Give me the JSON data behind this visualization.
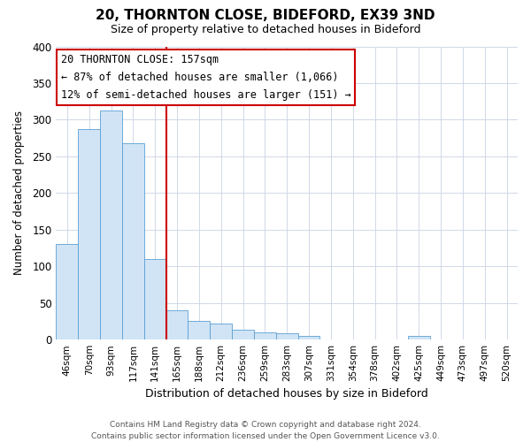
{
  "title": "20, THORNTON CLOSE, BIDEFORD, EX39 3ND",
  "subtitle": "Size of property relative to detached houses in Bideford",
  "xlabel": "Distribution of detached houses by size in Bideford",
  "ylabel": "Number of detached properties",
  "bar_labels": [
    "46sqm",
    "70sqm",
    "93sqm",
    "117sqm",
    "141sqm",
    "165sqm",
    "188sqm",
    "212sqm",
    "236sqm",
    "259sqm",
    "283sqm",
    "307sqm",
    "331sqm",
    "354sqm",
    "378sqm",
    "402sqm",
    "425sqm",
    "449sqm",
    "473sqm",
    "497sqm",
    "520sqm"
  ],
  "bar_values": [
    130,
    287,
    313,
    268,
    110,
    40,
    25,
    22,
    13,
    10,
    9,
    5,
    0,
    0,
    0,
    0,
    5,
    0,
    0,
    0,
    0
  ],
  "bar_color": "#d0e4f5",
  "bar_edge_color": "#5a9fd4",
  "vline_color": "#cc0000",
  "vline_index": 5,
  "ylim": [
    0,
    400
  ],
  "yticks": [
    0,
    50,
    100,
    150,
    200,
    250,
    300,
    350,
    400
  ],
  "annotation_title": "20 THORNTON CLOSE: 157sqm",
  "annotation_line1": "← 87% of detached houses are smaller (1,066)",
  "annotation_line2": "12% of semi-detached houses are larger (151) →",
  "annotation_box_color": "#ffffff",
  "annotation_box_edge": "#cc0000",
  "footer_line1": "Contains HM Land Registry data © Crown copyright and database right 2024.",
  "footer_line2": "Contains public sector information licensed under the Open Government Licence v3.0.",
  "background_color": "#ffffff",
  "grid_color": "#d0d8e8"
}
